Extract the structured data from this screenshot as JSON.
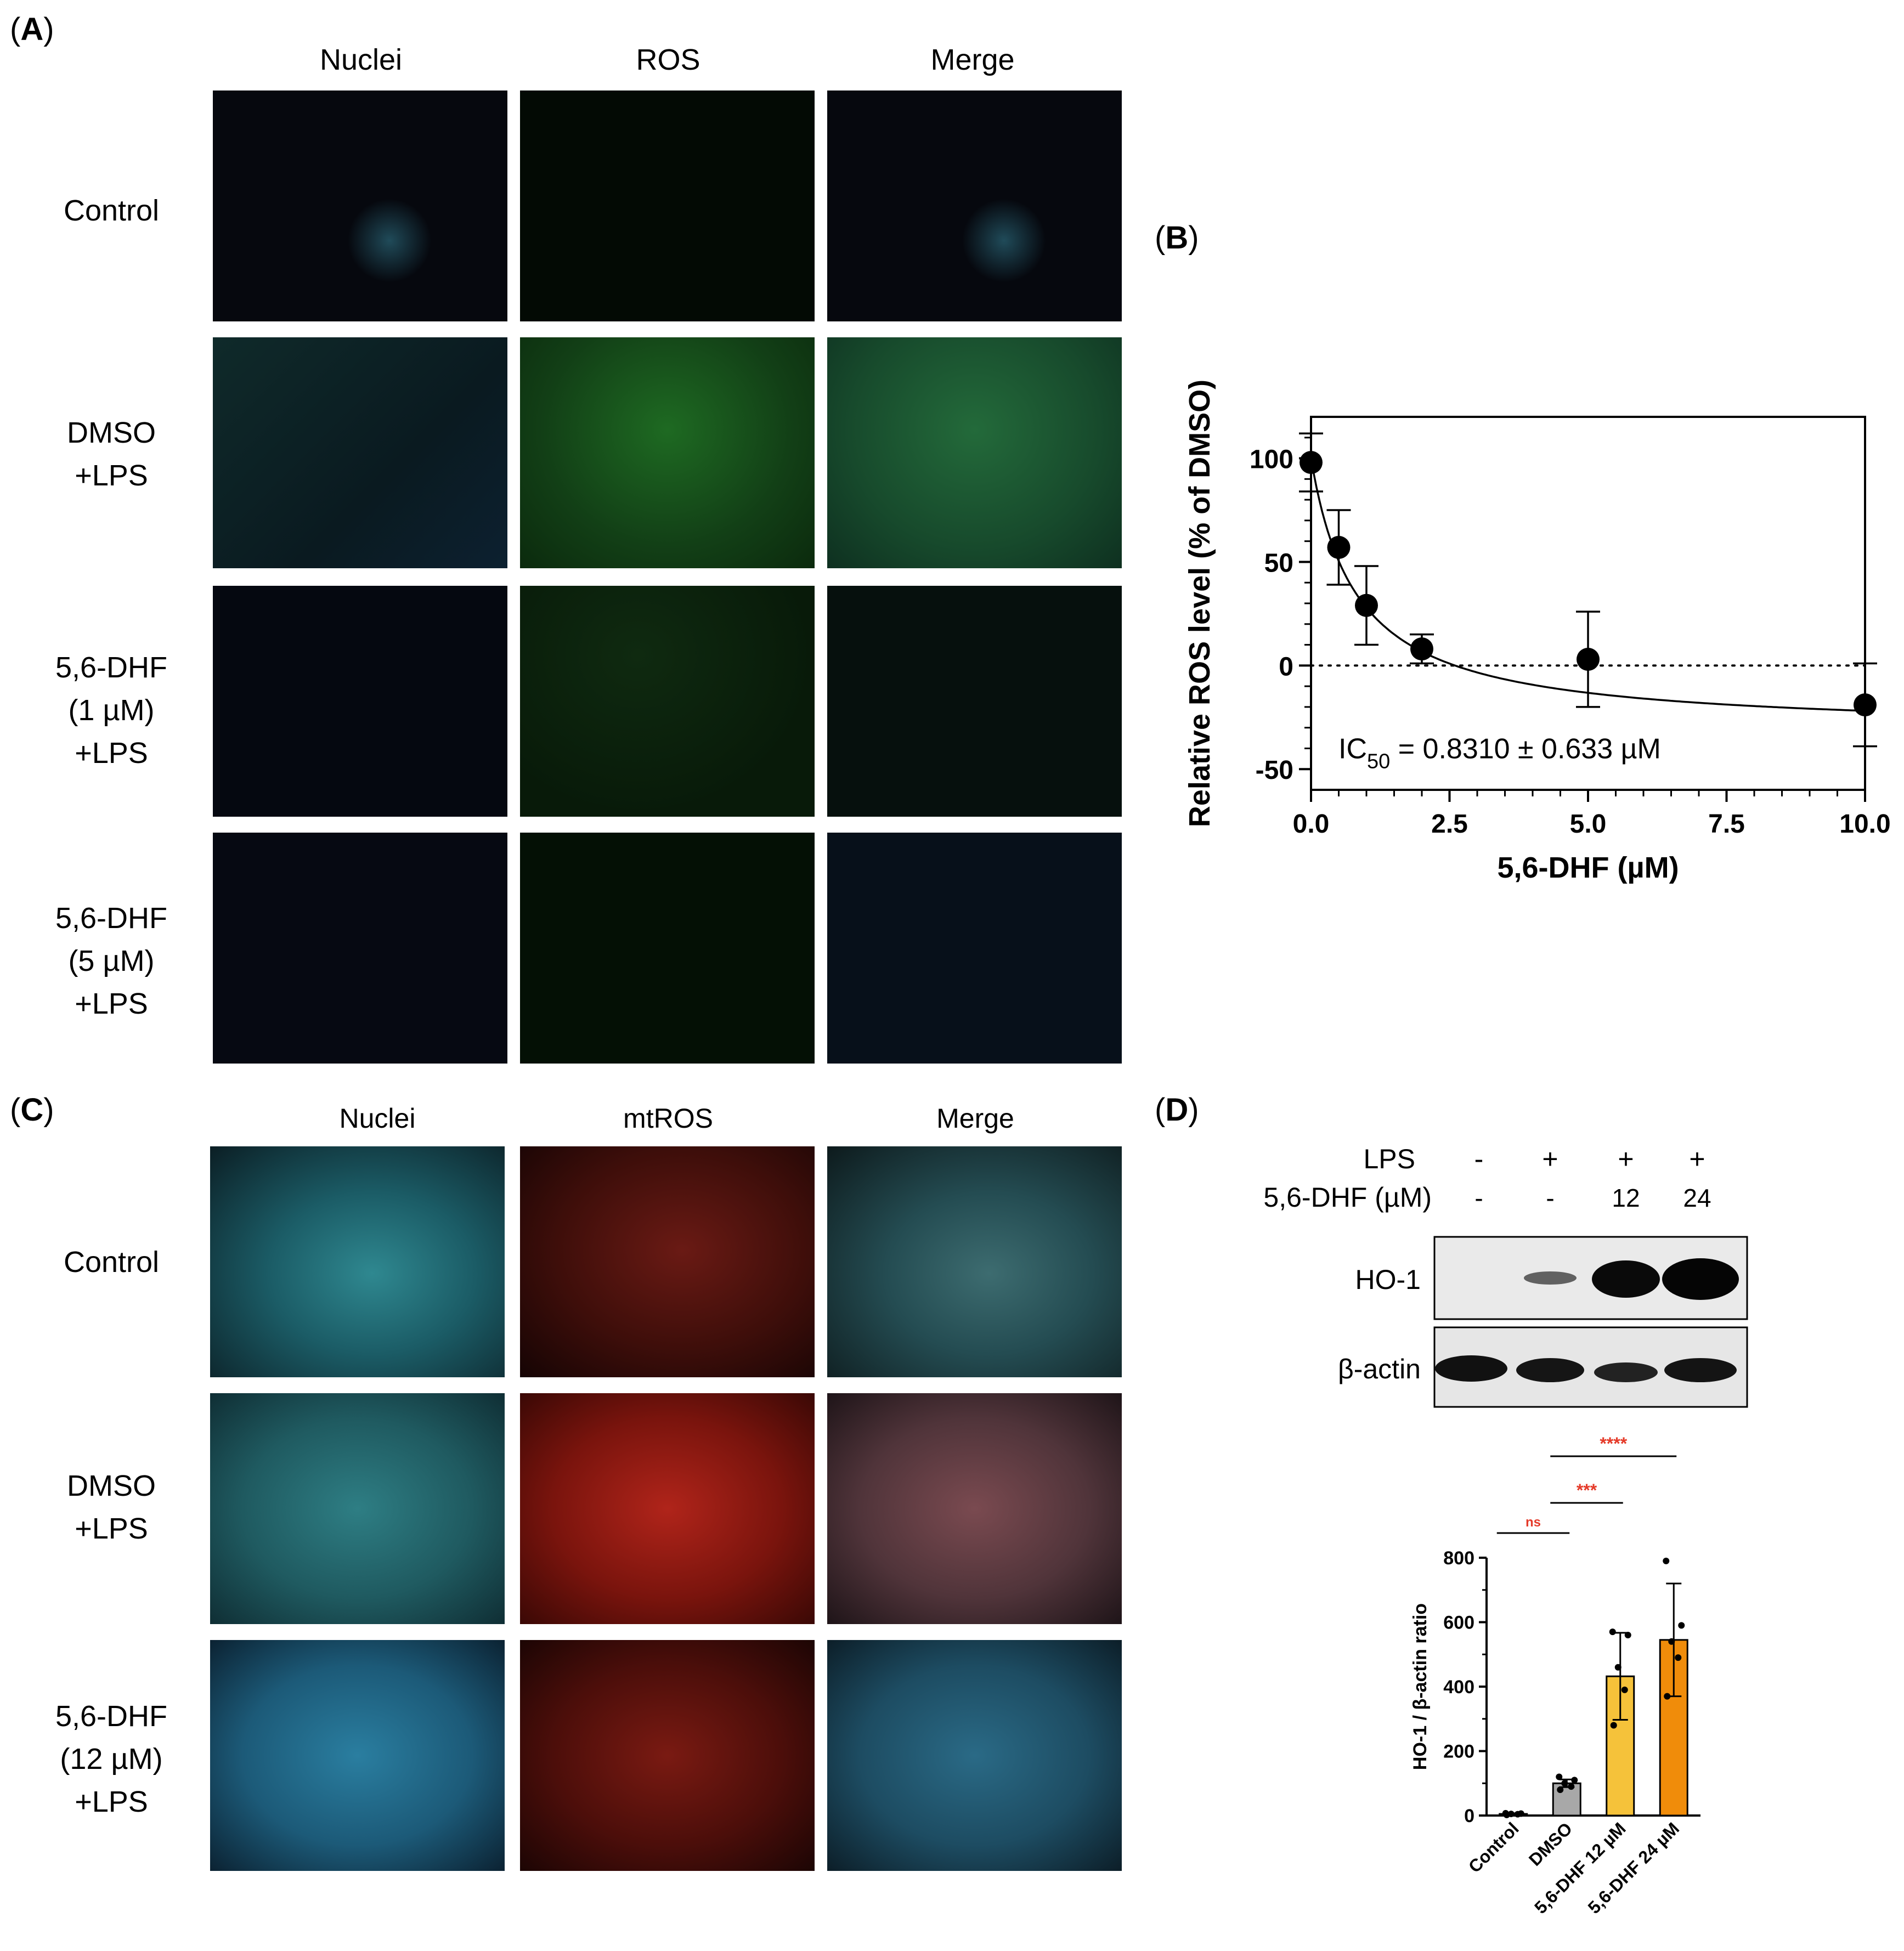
{
  "panelA": {
    "label_open": "(",
    "label_letter": "A",
    "label_close": ")",
    "columns": [
      "Nuclei",
      "ROS",
      "Merge"
    ],
    "rows": [
      "Control",
      "DMSO\n+LPS",
      "5,6-DHF\n(1 µM)\n+LPS",
      "5,6-DHF\n(5 µM)\n+LPS"
    ]
  },
  "panelB": {
    "label_open": "(",
    "label_letter": "B",
    "label_close": ")",
    "chart_data": {
      "type": "scatter",
      "xlabel": "5,6-DHF (µM)",
      "ylabel": "Relative ROS level (% of DMSO)",
      "xlim": [
        0,
        10
      ],
      "ylim": [
        -60,
        120
      ],
      "xticks": [
        "0.0",
        "2.5",
        "5.0",
        "7.5",
        "10.0"
      ],
      "yticks": [
        "-50",
        "0",
        "50",
        "100"
      ],
      "points": [
        {
          "x": 0,
          "y": 98,
          "err": 14
        },
        {
          "x": 0.5,
          "y": 57,
          "err": 18
        },
        {
          "x": 1,
          "y": 29,
          "err": 19
        },
        {
          "x": 2,
          "y": 8,
          "err": 7
        },
        {
          "x": 5,
          "y": 3,
          "err": 23
        },
        {
          "x": 10,
          "y": -19,
          "err": 20
        }
      ],
      "fit": "IC50 curve",
      "reference_line": 0,
      "annotation_main": "IC",
      "annotation_sub": "50",
      "annotation_rest": " = 0.8310 ± 0.633 µM"
    }
  },
  "panelC": {
    "label_open": "(",
    "label_letter": "C",
    "label_close": ")",
    "columns": [
      "Nuclei",
      "mtROS",
      "Merge"
    ],
    "rows": [
      "Control",
      "DMSO\n+LPS",
      "5,6-DHF\n(12 µM)\n+LPS"
    ]
  },
  "panelD": {
    "label_open": "(",
    "label_letter": "D",
    "label_close": ")",
    "lps_label": "LPS",
    "lps_values": [
      "-",
      "+",
      "+",
      "+"
    ],
    "dhf_label": "5,6-DHF (µM)",
    "dhf_values": [
      "-",
      "-",
      "12",
      "24"
    ],
    "band_labels": [
      "HO-1",
      "β-actin"
    ],
    "chart_data": {
      "type": "bar",
      "ylabel": "HO-1 / β-actin ratio",
      "categories": [
        "Control",
        "DMSO",
        "5,6-DHF 12 µM",
        "5,6-DHF 24 µM"
      ],
      "values": [
        5,
        100,
        432,
        545
      ],
      "errors": [
        2,
        12,
        135,
        175
      ],
      "colors": [
        "#808080",
        "#a8a8a8",
        "#f5c23a",
        "#f08c0a"
      ],
      "ylim": [
        0,
        800
      ],
      "yticks": [
        "0",
        "200",
        "400",
        "600",
        "800"
      ],
      "dots": [
        [
          2,
          4,
          5,
          6,
          7
        ],
        [
          80,
          90,
          100,
          110,
          120
        ],
        [
          280,
          390,
          460,
          560,
          570
        ],
        [
          370,
          490,
          540,
          590,
          790
        ]
      ],
      "significance": [
        {
          "label": "ns",
          "from": 0,
          "to": 1
        },
        {
          "label": "***",
          "from": 1,
          "to": 2
        },
        {
          "label": "****",
          "from": 1,
          "to": 3
        }
      ]
    }
  }
}
